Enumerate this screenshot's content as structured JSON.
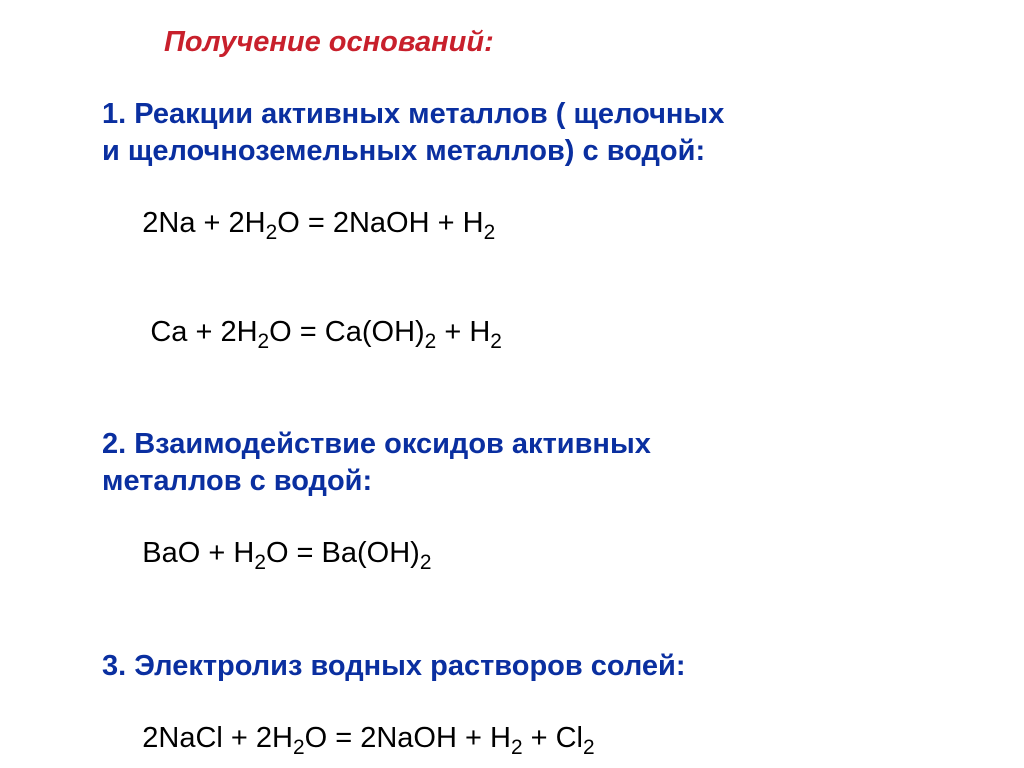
{
  "title": {
    "text": "Получение оснований:",
    "color": "#c8202c",
    "fontsize": 29
  },
  "section1": {
    "heading_part1": "1. Реакции активных металлов ( щелочных",
    "heading_part2": "и щелочноземельных металлов) с водой:",
    "color": "#0a2fa0",
    "fontsize": 29,
    "eq1": {
      "pre": " 2Na + 2H",
      "sub1": "2",
      "mid1": "O = 2NaOH + H",
      "sub2": "2",
      "color": "#000000"
    },
    "eq2": {
      "pre": "  Ca + 2H",
      "sub1": "2",
      "mid1": "O = Ca(OH)",
      "sub2": "2",
      "mid2": " + H",
      "sub3": "2",
      "color": "#000000"
    }
  },
  "section2": {
    "heading_part1": "2. Взаимодействие оксидов активных",
    "heading_part2": "металлов с водой:",
    "color": "#0a2fa0",
    "fontsize": 29,
    "eq1": {
      "pre": " BaO + H",
      "sub1": "2",
      "mid1": "O = Ba(OH)",
      "sub2": "2",
      "color": "#000000"
    }
  },
  "section3": {
    "heading": "3. Электролиз водных растворов солей:",
    "color": "#0a2fa0",
    "fontsize": 29,
    "eq1": {
      "pre": " 2NaCl + 2H",
      "sub1": "2",
      "mid1": "O = 2NaOH + H",
      "sub2": "2",
      "mid2": " + Cl",
      "sub3": "2",
      "color": "#000000"
    }
  },
  "body_fontsize": 29
}
